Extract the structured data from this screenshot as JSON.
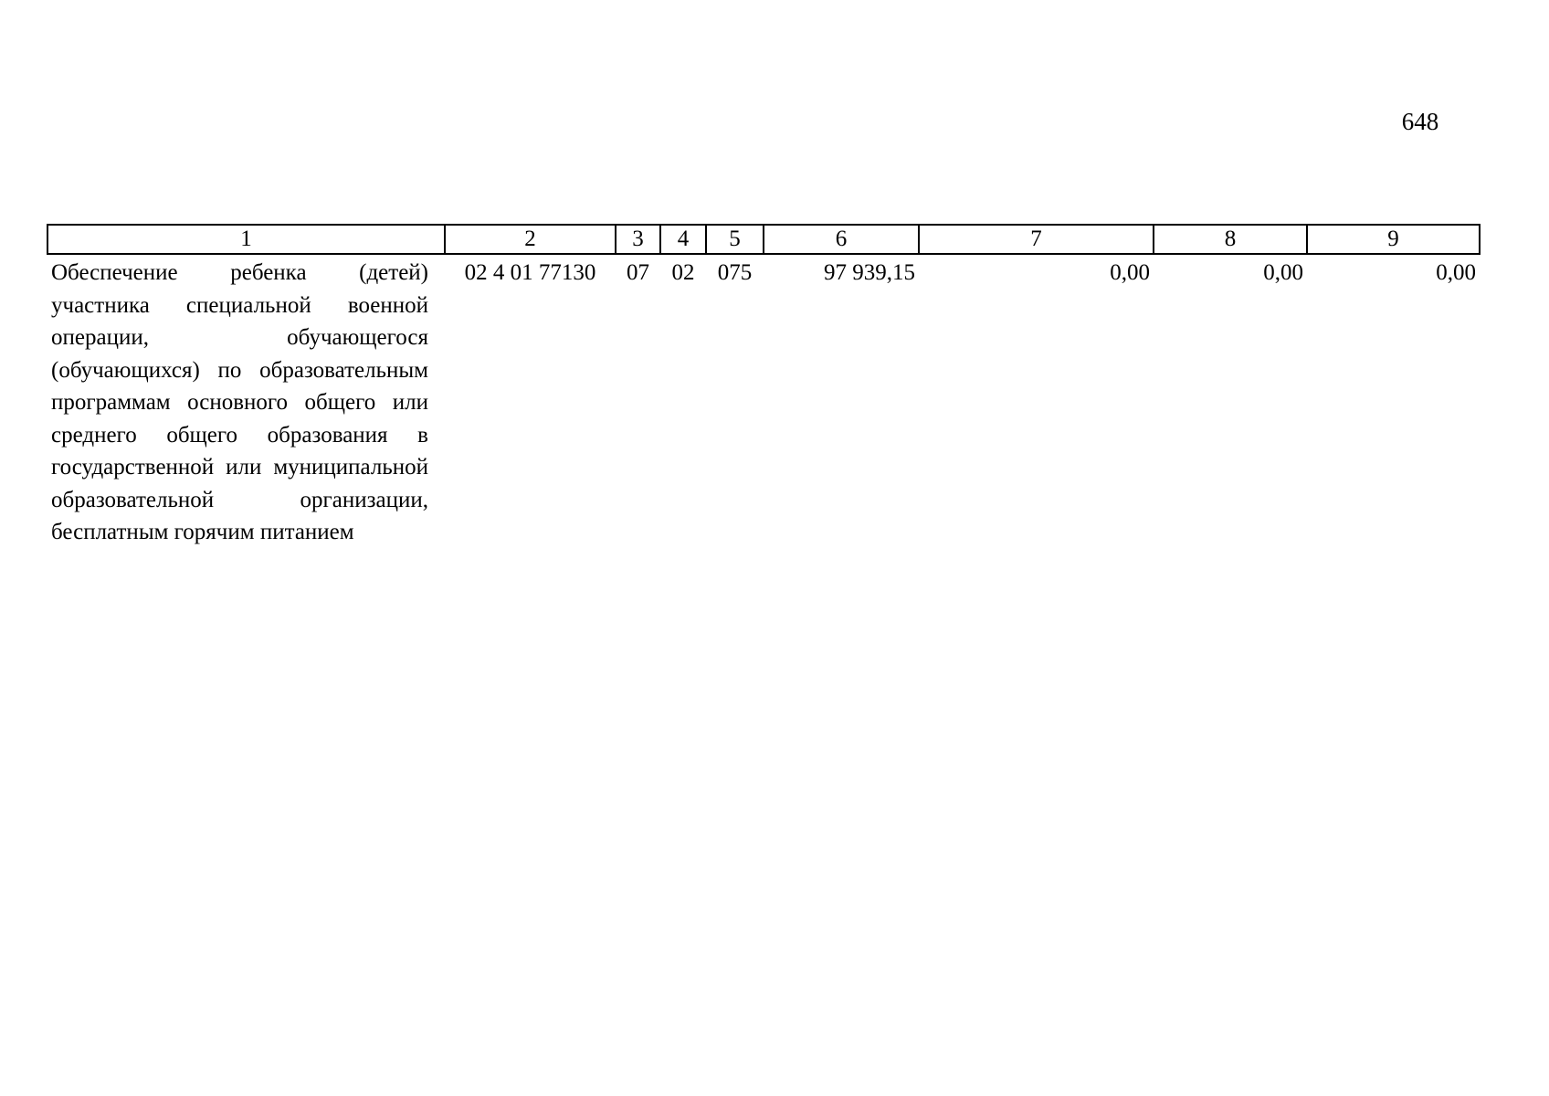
{
  "page_number": "648",
  "table": {
    "header": [
      "1",
      "2",
      "3",
      "4",
      "5",
      "6",
      "7",
      "8",
      "9"
    ],
    "rows": [
      [
        "Обеспечение ребенка (детей) участника специальной военной операции, обучающегося (обучающихся) по образовательным программам основного общего или среднего общего образования в государственной или муниципальной образовательной организации, бесплатным горячим питанием",
        "02 4 01 77130",
        "07",
        "02",
        "075",
        "97 939,15",
        "0,00",
        "0,00",
        "0,00"
      ]
    ]
  }
}
